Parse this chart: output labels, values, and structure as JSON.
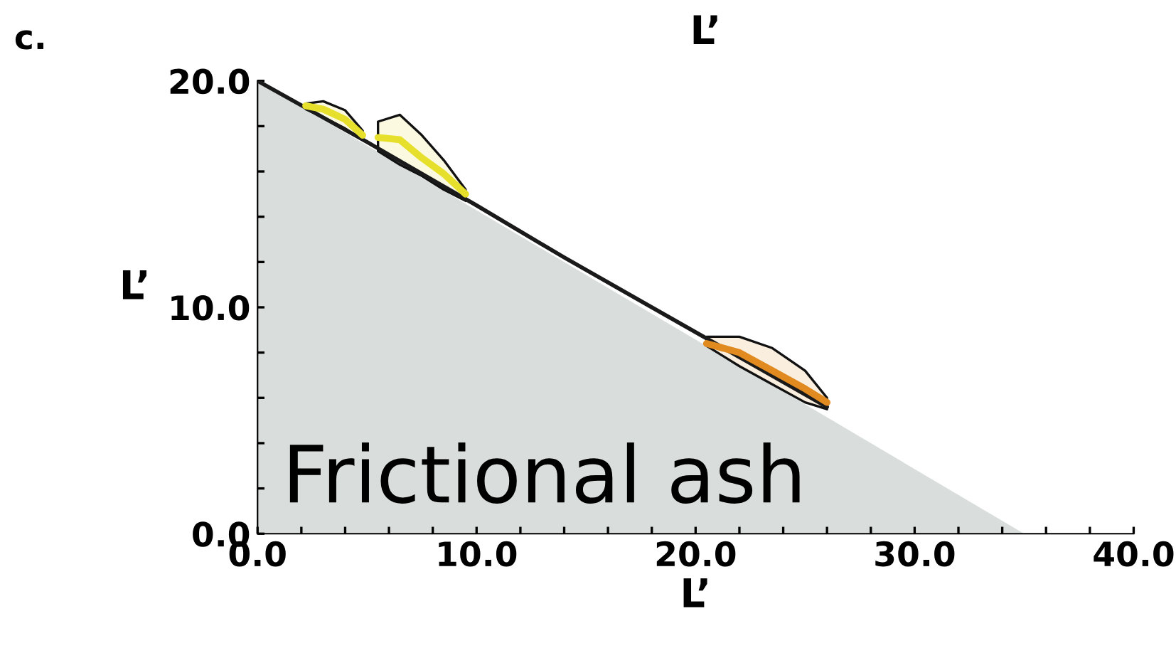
{
  "chart_data": {
    "type": "area",
    "title": "c.",
    "xlabel": "L’",
    "ylabel": "L’",
    "annotations": [
      "L’",
      "Frictional ash"
    ],
    "xlim": [
      0,
      40
    ],
    "ylim": [
      0,
      20
    ],
    "xticks": [
      {
        "value": 0,
        "label": "0.0"
      },
      {
        "value": 2,
        "label": null
      },
      {
        "value": 4,
        "label": null
      },
      {
        "value": 6,
        "label": null
      },
      {
        "value": 8,
        "label": null
      },
      {
        "value": 10,
        "label": "10.0"
      },
      {
        "value": 12,
        "label": null
      },
      {
        "value": 14,
        "label": null
      },
      {
        "value": 16,
        "label": null
      },
      {
        "value": 18,
        "label": null
      },
      {
        "value": 20,
        "label": "20.0"
      },
      {
        "value": 22,
        "label": null
      },
      {
        "value": 24,
        "label": null
      },
      {
        "value": 26,
        "label": null
      },
      {
        "value": 28,
        "label": null
      },
      {
        "value": 30,
        "label": "30.0"
      },
      {
        "value": 32,
        "label": null
      },
      {
        "value": 34,
        "label": null
      },
      {
        "value": 36,
        "label": null
      },
      {
        "value": 38,
        "label": null
      },
      {
        "value": 40,
        "label": "40.0"
      }
    ],
    "yticks": [
      {
        "value": 0,
        "label": "0.0"
      },
      {
        "value": 2,
        "label": null
      },
      {
        "value": 4,
        "label": null
      },
      {
        "value": 6,
        "label": null
      },
      {
        "value": 8,
        "label": null
      },
      {
        "value": 10,
        "label": "10.0"
      },
      {
        "value": 12,
        "label": null
      },
      {
        "value": 14,
        "label": null
      },
      {
        "value": 16,
        "label": null
      },
      {
        "value": 18,
        "label": null
      },
      {
        "value": 20,
        "label": "20.0"
      }
    ],
    "series": [
      {
        "color": "#d9dedd",
        "x": [
          0,
          35
        ],
        "values": [
          20,
          0
        ]
      },
      {
        "type": "line",
        "color": "#1a1a1a",
        "x": [
          0,
          5,
          10,
          14,
          18,
          22,
          26
        ],
        "values": [
          20.0,
          17.3,
          14.5,
          12.2,
          10.0,
          7.8,
          5.6
        ]
      },
      {
        "type": "line",
        "color": "#e6e02c",
        "x": [
          2.2,
          3.0,
          4.0,
          4.8,
          5.25,
          5.5,
          6.5,
          7.5,
          8.5,
          9.5
        ],
        "values": [
          18.9,
          18.75,
          18.3,
          17.6,
          null,
          17.5,
          17.4,
          16.6,
          15.9,
          15.0
        ],
        "lower": [
          18.75,
          18.4,
          17.9,
          17.4,
          null,
          16.9,
          16.3,
          15.8,
          15.2,
          14.7
        ],
        "upper": [
          19.0,
          19.1,
          18.7,
          17.8,
          null,
          18.2,
          18.5,
          17.6,
          16.5,
          15.2
        ]
      },
      {
        "type": "line",
        "color": "#e08a20",
        "x": [
          20.5,
          22.0,
          23.5,
          25.0,
          26.0
        ],
        "values": [
          8.4,
          8.0,
          7.2,
          6.4,
          5.8
        ],
        "lower": [
          8.3,
          7.4,
          6.6,
          5.8,
          5.5
        ],
        "upper": [
          8.7,
          8.7,
          8.2,
          7.2,
          6.0
        ]
      }
    ]
  }
}
